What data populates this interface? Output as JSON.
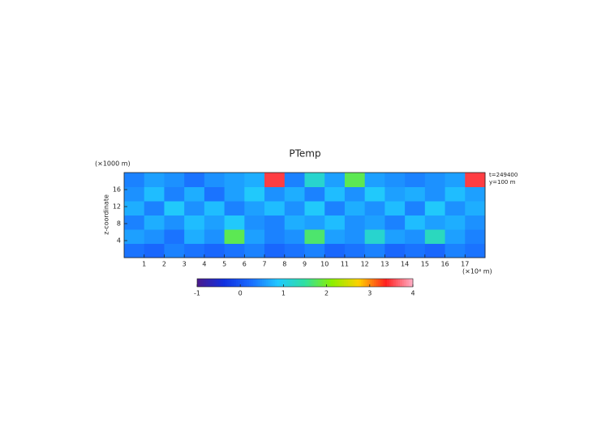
{
  "chart_data": {
    "type": "heatmap",
    "title": "PTemp",
    "ylabel": "z-coordinate",
    "xunit": "(×10⁴ m)",
    "yunit": "(×1000 m)",
    "annotations": [
      "t=249400",
      "y=100 m"
    ],
    "xlim": [
      0,
      18
    ],
    "ylim": [
      0,
      20
    ],
    "xticks": [
      1,
      2,
      3,
      4,
      5,
      6,
      7,
      8,
      9,
      10,
      11,
      12,
      13,
      14,
      15,
      16,
      17
    ],
    "yticks": [
      4,
      8,
      12,
      16
    ],
    "z": [
      [
        0.3,
        0.2,
        0.4,
        0.3,
        0.2,
        0.3,
        0.4,
        0.2,
        0.3,
        0.4,
        0.2,
        0.3,
        0.4,
        0.2,
        0.3,
        0.2,
        0.4,
        0.3
      ],
      [
        0.6,
        0.5,
        0.3,
        0.7,
        0.5,
        1.8,
        0.6,
        0.4,
        0.5,
        1.7,
        0.6,
        0.5,
        1.2,
        0.6,
        0.5,
        1.3,
        0.6,
        0.4
      ],
      [
        0.4,
        0.7,
        0.5,
        0.8,
        0.6,
        0.9,
        0.5,
        0.4,
        0.7,
        0.6,
        0.8,
        0.5,
        0.6,
        0.4,
        0.8,
        0.6,
        0.7,
        0.5
      ],
      [
        0.7,
        0.4,
        0.9,
        0.5,
        0.8,
        0.4,
        0.6,
        0.8,
        0.5,
        0.9,
        0.4,
        0.7,
        0.5,
        0.8,
        0.4,
        0.9,
        0.5,
        0.7
      ],
      [
        0.5,
        0.8,
        0.4,
        0.7,
        0.3,
        0.6,
        0.9,
        0.5,
        0.7,
        0.4,
        0.8,
        0.5,
        0.9,
        0.6,
        0.7,
        0.5,
        0.8,
        0.6
      ],
      [
        0.4,
        0.6,
        0.5,
        0.3,
        0.5,
        0.6,
        0.7,
        3.5,
        0.4,
        1.2,
        0.6,
        1.8,
        0.6,
        0.5,
        0.4,
        0.5,
        0.6,
        3.5
      ]
    ],
    "clim": [
      -1,
      4
    ],
    "cticks": [
      -1,
      0,
      1,
      2,
      3,
      4
    ],
    "colormap": [
      "#4b1a8c",
      "#1030e0",
      "#1a6cff",
      "#20c8ff",
      "#30e0a0",
      "#8cf000",
      "#ffd000",
      "#ff2020",
      "#ffb0c8"
    ]
  }
}
